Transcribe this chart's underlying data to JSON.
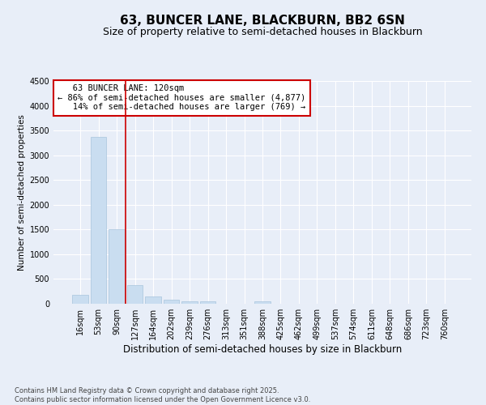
{
  "title": "63, BUNCER LANE, BLACKBURN, BB2 6SN",
  "subtitle": "Size of property relative to semi-detached houses in Blackburn",
  "xlabel": "Distribution of semi-detached houses by size in Blackburn",
  "ylabel": "Number of semi-detached properties",
  "categories": [
    "16sqm",
    "53sqm",
    "90sqm",
    "127sqm",
    "164sqm",
    "202sqm",
    "239sqm",
    "276sqm",
    "313sqm",
    "351sqm",
    "388sqm",
    "425sqm",
    "462sqm",
    "499sqm",
    "537sqm",
    "574sqm",
    "611sqm",
    "648sqm",
    "686sqm",
    "723sqm",
    "760sqm"
  ],
  "values": [
    185,
    3370,
    1500,
    370,
    140,
    80,
    55,
    50,
    0,
    0,
    45,
    0,
    0,
    0,
    0,
    0,
    0,
    0,
    0,
    0,
    0
  ],
  "bar_color": "#c9ddf0",
  "bar_edgecolor": "#a8c4dd",
  "vline_color": "#cc0000",
  "annotation_line1": "   63 BUNCER LANE: 120sqm",
  "annotation_line2": "← 86% of semi-detached houses are smaller (4,877)",
  "annotation_line3": "   14% of semi-detached houses are larger (769) →",
  "annotation_box_color": "#ffffff",
  "annotation_box_edgecolor": "#cc0000",
  "ylim": [
    0,
    4500
  ],
  "yticks": [
    0,
    500,
    1000,
    1500,
    2000,
    2500,
    3000,
    3500,
    4000,
    4500
  ],
  "background_color": "#e8eef8",
  "grid_color": "#ffffff",
  "footer_line1": "Contains HM Land Registry data © Crown copyright and database right 2025.",
  "footer_line2": "Contains public sector information licensed under the Open Government Licence v3.0.",
  "title_fontsize": 11,
  "subtitle_fontsize": 9,
  "xlabel_fontsize": 8.5,
  "ylabel_fontsize": 7.5,
  "tick_fontsize": 7,
  "annotation_fontsize": 7.5,
  "footer_fontsize": 6
}
